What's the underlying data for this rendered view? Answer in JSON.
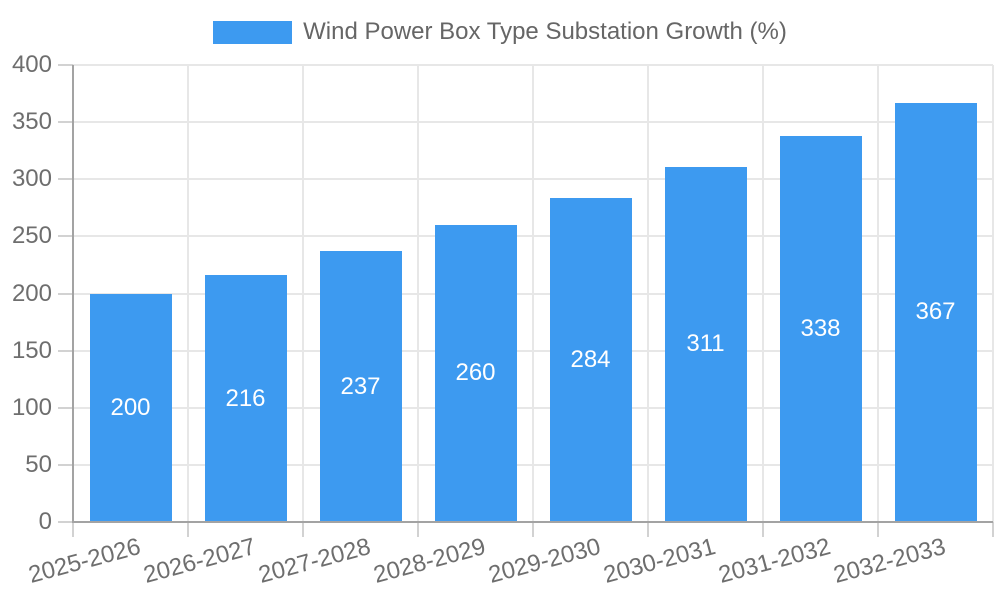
{
  "legend": {
    "label": "Wind Power Box Type Substation Growth (%)"
  },
  "chart_data": {
    "type": "bar",
    "title": "Wind Power Box Type Substation Growth (%)",
    "categories": [
      "2025-2026",
      "2026-2027",
      "2027-2028",
      "2028-2029",
      "2029-2030",
      "2030-2031",
      "2031-2032",
      "2032-2033"
    ],
    "values": [
      200,
      216,
      237,
      260,
      284,
      311,
      338,
      367
    ],
    "series": [
      {
        "name": "Wind Power Box Type Substation Growth (%)",
        "values": [
          200,
          216,
          237,
          260,
          284,
          311,
          338,
          367
        ]
      }
    ],
    "xlabel": "",
    "ylabel": "",
    "ylim": [
      0,
      400
    ],
    "y_ticks": [
      0,
      50,
      100,
      150,
      200,
      250,
      300,
      350,
      400
    ],
    "grid": true,
    "legend_position": "top",
    "value_labels": "inside-center",
    "x_tick_rotation_deg": -15,
    "colors": {
      "bar": "#3d9af0",
      "value_label": "#ffffff",
      "axis_line": "#a3a3a3",
      "grid_line": "#e7e7e7",
      "tick_line": "#d2d2d2",
      "axis_text": "#6e6e6e",
      "legend_text": "#666666",
      "background": "#ffffff"
    }
  }
}
